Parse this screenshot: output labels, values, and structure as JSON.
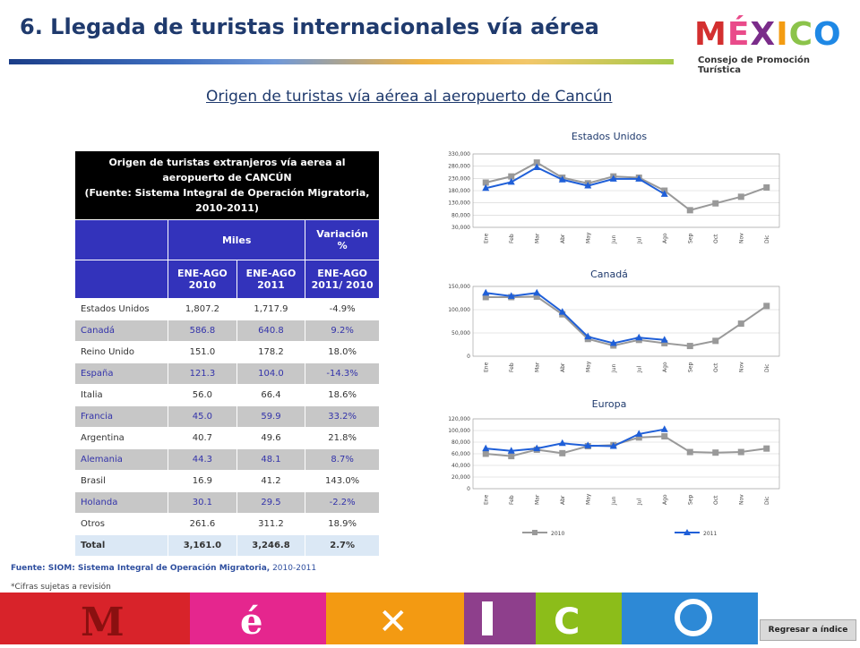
{
  "page": {
    "title": "6. Llegada de turistas internacionales vía aérea",
    "subtitle": "Origen de turistas vía aérea al aeropuerto de Cancún",
    "logo_word": "MÉXICO",
    "logo_sub": "Consejo de Promoción Turística",
    "footnote_bold": "Fuente: SIOM: Sistema Integral de Operación Migratoria,",
    "footnote_rest": " 2010-2011",
    "footnote2": "*Cifras sujetas a revisión",
    "back_button": "Regresar a índice"
  },
  "table": {
    "header_title": "Origen de turistas extranjeros vía aerea al aeropuerto de CANCÚN",
    "header_source": "(Fuente: Sistema Integral de Operación Migratoria, 2010-2011)",
    "miles": "Miles",
    "variacion": "Variación %",
    "col1": "ENE-AGO 2010",
    "col2": "ENE-AGO 2011",
    "col3": "ENE-AGO 2011/ 2010",
    "rows": [
      {
        "country": "Estados Unidos",
        "v2010": "1,807.2",
        "v2011": "1,717.9",
        "var": "-4.9%"
      },
      {
        "country": "Canadá",
        "v2010": "586.8",
        "v2011": "640.8",
        "var": "9.2%"
      },
      {
        "country": "Reino Unido",
        "v2010": "151.0",
        "v2011": "178.2",
        "var": "18.0%"
      },
      {
        "country": "España",
        "v2010": "121.3",
        "v2011": "104.0",
        "var": "-14.3%"
      },
      {
        "country": "Italia",
        "v2010": "56.0",
        "v2011": "66.4",
        "var": "18.6%"
      },
      {
        "country": "Francia",
        "v2010": "45.0",
        "v2011": "59.9",
        "var": "33.2%"
      },
      {
        "country": "Argentina",
        "v2010": "40.7",
        "v2011": "49.6",
        "var": "21.8%"
      },
      {
        "country": "Alemania",
        "v2010": "44.3",
        "v2011": "48.1",
        "var": "8.7%"
      },
      {
        "country": "Brasil",
        "v2010": "16.9",
        "v2011": "41.2",
        "var": "143.0%"
      },
      {
        "country": "Holanda",
        "v2010": "30.1",
        "v2011": "29.5",
        "var": "-2.2%"
      },
      {
        "country": "Otros",
        "v2010": "261.6",
        "v2011": "311.2",
        "var": "18.9%"
      }
    ],
    "total": {
      "country": "Total",
      "v2010": "3,161.0",
      "v2011": "3,246.8",
      "var": "2.7%"
    }
  },
  "colors": {
    "series_2010": "#999999",
    "series_2011": "#1f5fd8",
    "table_header_blue": "#3333bb",
    "title_blue": "#1f3a6d"
  },
  "chart_data": [
    {
      "type": "line",
      "title": "Estados Unidos",
      "categories": [
        "Ene",
        "Feb",
        "Mar",
        "Abr",
        "May",
        "Jun",
        "Jul",
        "Ago",
        "Sep",
        "Oct",
        "Nov",
        "Dic"
      ],
      "yticks": [
        "330,000",
        "280,000",
        "230,000",
        "180,000",
        "130,000",
        "80,000",
        "30,000"
      ],
      "ylim": [
        30000,
        330000
      ],
      "series": [
        {
          "name": "2010",
          "values": [
            213000,
            238000,
            295000,
            233000,
            210000,
            238000,
            233000,
            180000,
            100000,
            128000,
            155000,
            193000
          ]
        },
        {
          "name": "2011",
          "values": [
            190000,
            215000,
            275000,
            225000,
            200000,
            228000,
            228000,
            166000,
            null,
            null,
            null,
            null
          ]
        }
      ]
    },
    {
      "type": "line",
      "title": "Canadá",
      "categories": [
        "Ene",
        "Feb",
        "Mar",
        "Abr",
        "May",
        "Jun",
        "Jul",
        "Ago",
        "Sep",
        "Oct",
        "Nov",
        "Dic"
      ],
      "yticks": [
        "150,000",
        "100,000",
        "50,000",
        "0"
      ],
      "ylim": [
        0,
        150000
      ],
      "series": [
        {
          "name": "2010",
          "values": [
            127000,
            127000,
            128000,
            90000,
            37000,
            23000,
            35000,
            28000,
            22000,
            33000,
            70000,
            108000
          ]
        },
        {
          "name": "2011",
          "values": [
            136000,
            129000,
            136000,
            95000,
            42000,
            28000,
            40000,
            35000,
            null,
            null,
            null,
            null
          ]
        }
      ]
    },
    {
      "type": "line",
      "title": "Europa",
      "categories": [
        "Ene",
        "Feb",
        "Mar",
        "Abr",
        "May",
        "Jun",
        "Jul",
        "Ago",
        "Sep",
        "Oct",
        "Nov",
        "Dic"
      ],
      "yticks": [
        "120,000",
        "100,000",
        "80,000",
        "60,000",
        "40,000",
        "20,000",
        "0"
      ],
      "ylim": [
        0,
        120000
      ],
      "series": [
        {
          "name": "2010",
          "values": [
            60000,
            56000,
            67000,
            61000,
            73000,
            75000,
            88000,
            90000,
            63000,
            62000,
            63000,
            69000
          ]
        },
        {
          "name": "2011",
          "values": [
            69000,
            65000,
            69000,
            78000,
            74000,
            73000,
            94000,
            102000,
            null,
            null,
            null,
            null
          ]
        }
      ],
      "legend": [
        "2010",
        "2011"
      ],
      "legend_position": "bottom"
    }
  ]
}
